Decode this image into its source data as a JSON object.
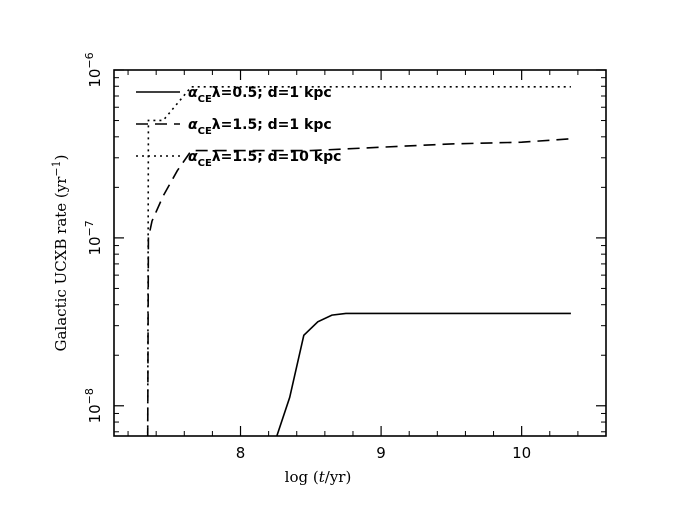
{
  "chart_data": {
    "type": "line",
    "title": "",
    "xlabel": "log (t/yr)",
    "ylabel": "Galactic UCXB rate (yr⁻¹)",
    "xlim": [
      7.1,
      10.6
    ],
    "ylim_log10": [
      -8.18,
      -6.0
    ],
    "y_scale": "log",
    "x_ticks": [
      8,
      9,
      10
    ],
    "x_tick_labels": [
      "8",
      "9",
      "10"
    ],
    "y_ticks_log10": [
      -8,
      -7,
      -6
    ],
    "y_tick_labels": [
      {
        "base": "10",
        "exp": "−8"
      },
      {
        "base": "10",
        "exp": "−7"
      },
      {
        "base": "10",
        "exp": "−6"
      }
    ],
    "legend_position": "top-left",
    "series": [
      {
        "name": "αCEλ=0.5; d=1 kpc",
        "legend": {
          "alpha": "α",
          "sub": "CE",
          "rest": "λ=0.5; d=1 kpc"
        },
        "style": "solid",
        "x": [
          8.25,
          8.35,
          8.45,
          8.55,
          8.65,
          8.75,
          9.0,
          9.5,
          10.0,
          10.35
        ],
        "y_log10": [
          -8.2,
          -7.95,
          -7.58,
          -7.5,
          -7.46,
          -7.45,
          -7.45,
          -7.45,
          -7.45,
          -7.45
        ]
      },
      {
        "name": "αCEλ=1.5; d=1 kpc",
        "legend": {
          "alpha": "α",
          "sub": "CE",
          "rest": "λ=1.5; d=1 kpc"
        },
        "style": "dashed",
        "x": [
          7.34,
          7.345,
          7.37,
          7.45,
          7.55,
          7.65,
          8.0,
          8.5,
          9.0,
          9.5,
          10.0,
          10.35
        ],
        "y_log10": [
          -8.2,
          -7.0,
          -6.9,
          -6.75,
          -6.6,
          -6.48,
          -6.48,
          -6.48,
          -6.46,
          -6.44,
          -6.43,
          -6.41
        ]
      },
      {
        "name": "αCEλ=1.5; d=10 kpc",
        "legend": {
          "alpha": "α",
          "sub": "CE",
          "rest": "λ=1.5; d=10 kpc"
        },
        "style": "dotted",
        "x": [
          7.34,
          7.345,
          7.45,
          7.65,
          8.0,
          8.5,
          9.0,
          9.5,
          10.0,
          10.35
        ],
        "y_log10": [
          -8.2,
          -6.3,
          -6.3,
          -6.1,
          -6.1,
          -6.1,
          -6.1,
          -6.1,
          -6.1,
          -6.1
        ]
      }
    ]
  }
}
